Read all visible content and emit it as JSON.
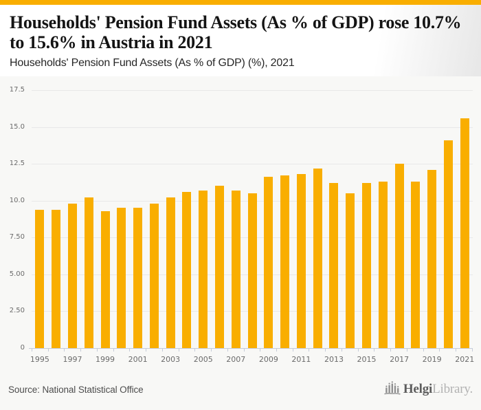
{
  "page": {
    "accent_color": "#F9AE00",
    "background": "#f8f8f6"
  },
  "header": {
    "title": "Households' Pension Fund Assets (As % of GDP) rose 10.7% to 15.6% in Austria in 2021",
    "subtitle": "Households' Pension Fund Assets (As % of GDP) (%), 2021"
  },
  "chart_data": {
    "type": "bar",
    "title": "Households' Pension Fund Assets (As % of GDP) (%), 2021",
    "x": [
      1995,
      1996,
      1997,
      1998,
      1999,
      2000,
      2001,
      2002,
      2003,
      2004,
      2005,
      2006,
      2007,
      2008,
      2009,
      2010,
      2011,
      2012,
      2013,
      2014,
      2015,
      2016,
      2017,
      2018,
      2019,
      2020,
      2021
    ],
    "values": [
      9.4,
      9.4,
      9.8,
      10.2,
      9.3,
      9.5,
      9.5,
      9.8,
      10.2,
      10.6,
      10.7,
      11.0,
      10.7,
      10.5,
      11.6,
      11.7,
      11.8,
      12.2,
      11.2,
      10.5,
      11.2,
      11.3,
      12.5,
      11.3,
      12.1,
      14.1,
      15.6
    ],
    "bar_color": "#F9AE00",
    "xlabel": "",
    "ylabel": "",
    "ylim": [
      0,
      17.5
    ],
    "yticks": [
      0,
      2.5,
      5,
      7.5,
      10,
      12.5,
      15,
      17.5
    ],
    "ytick_labels": [
      "0",
      "2.50",
      "5.00",
      "7.50",
      "10.0",
      "12.5",
      "15.0",
      "17.5"
    ],
    "xtick_labels": [
      "1995",
      "1997",
      "1999",
      "2001",
      "2003",
      "2005",
      "2007",
      "2009",
      "2011",
      "2013",
      "2015",
      "2017",
      "2019",
      "2021"
    ],
    "grid": true,
    "legend_position": "none"
  },
  "footer": {
    "source": "Source: National Statistical Office",
    "logo": {
      "icon": "bar-chart-icon",
      "text_primary": "Helgi",
      "text_secondary": "Library."
    }
  }
}
